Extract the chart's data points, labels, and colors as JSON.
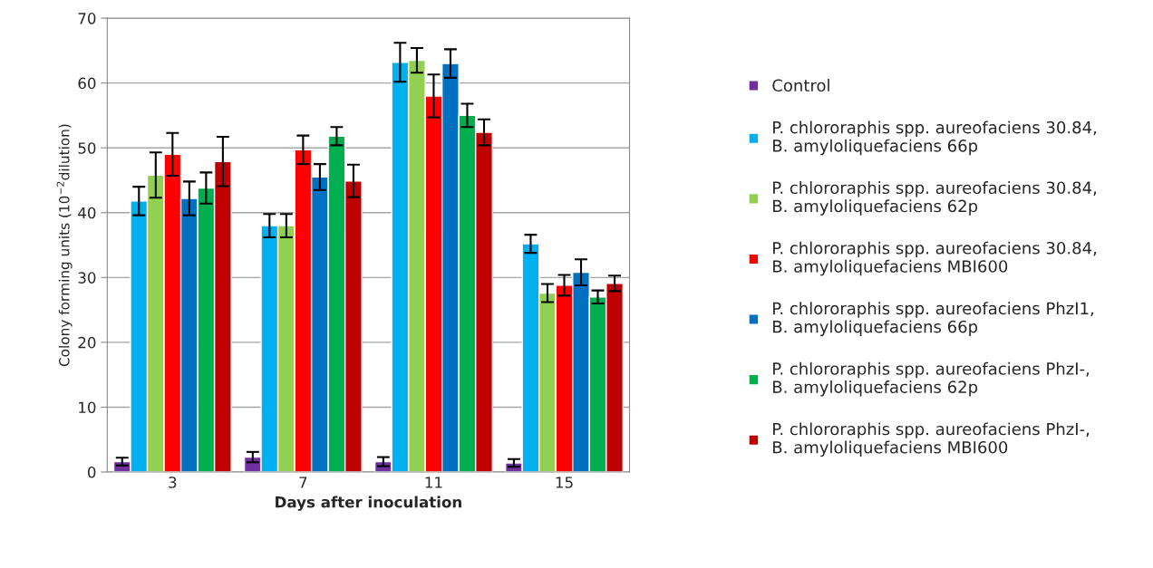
{
  "chart_data": {
    "type": "bar",
    "xlabel": "Days after inoculation",
    "ylabel": "Colony forming units (10$^{−2}$dilution)",
    "categories": [
      "3",
      "7",
      "11",
      "15"
    ],
    "ylim": [
      0,
      70
    ],
    "yticks": [
      0,
      10,
      20,
      30,
      40,
      50,
      60,
      70
    ],
    "grid": "y",
    "legend": "right",
    "series": [
      {
        "name": "Control",
        "color": "#7030a0",
        "values": [
          1.6,
          2.3,
          1.6,
          1.4
        ],
        "errors": [
          0.6,
          0.8,
          0.7,
          0.6
        ]
      },
      {
        "name": "P. chlororaphis spp. aureofaciens 30.84,\nB. amyloliquefaciens 66p",
        "color": "#00b0f0",
        "values": [
          41.8,
          38,
          63.2,
          35.2
        ],
        "errors": [
          2.2,
          1.8,
          3,
          1.4
        ]
      },
      {
        "name": "P. chlororaphis spp. aureofaciens 30.84,\nB. amyloliquefaciens 62p",
        "color": "#92d050",
        "values": [
          45.8,
          38,
          63.5,
          27.6
        ],
        "errors": [
          3.5,
          1.8,
          1.9,
          1.4
        ]
      },
      {
        "name": "P. chlororaphis spp. aureofaciens 30.84,\nB. amyloliquefaciens MBI600",
        "color": "#ff0000",
        "values": [
          49,
          49.7,
          58,
          28.8
        ],
        "errors": [
          3.3,
          2.2,
          3.3,
          1.6
        ]
      },
      {
        "name": "P. chlororaphis spp. aureofaciens PhzI1,\nB. amyloliquefaciens 66p",
        "color": "#0070c0",
        "values": [
          42.2,
          45.5,
          63,
          30.8
        ],
        "errors": [
          2.6,
          2,
          2.2,
          2
        ]
      },
      {
        "name": "P. chlororaphis spp. aureofaciens PhzI-,\nB. amyloliquefaciens 62p",
        "color": "#00b050",
        "values": [
          43.8,
          51.8,
          55,
          27
        ],
        "errors": [
          2.4,
          1.4,
          1.8,
          1
        ]
      },
      {
        "name": "P. chlororaphis spp. aureofaciens PhzI-,\nB. amyloliquefaciens MBI600",
        "color": "#c00000",
        "values": [
          47.9,
          44.9,
          52.4,
          29.1
        ],
        "errors": [
          3.8,
          2.5,
          2,
          1.2
        ]
      }
    ]
  }
}
